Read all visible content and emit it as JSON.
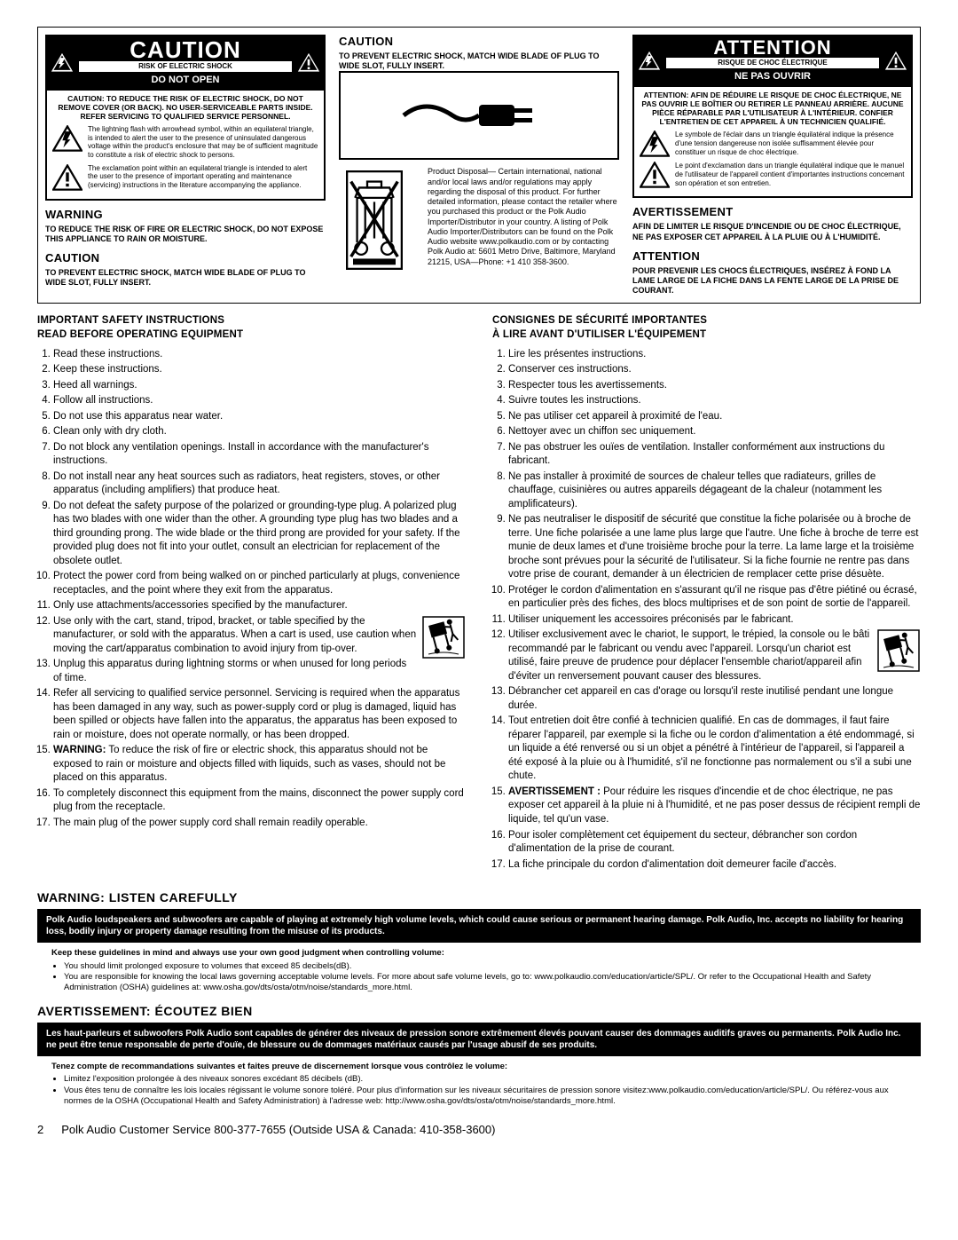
{
  "cautionBox": {
    "title": "CAUTION",
    "risk": "RISK OF ELECTRIC SHOCK",
    "doNotOpen": "DO NOT OPEN",
    "body": "CAUTION: TO REDUCE THE RISK OF ELECTRIC SHOCK, DO NOT REMOVE COVER (OR BACK). NO USER-SERVICEABLE PARTS INSIDE. REFER SERVICING TO QUALIFIED SERVICE PERSONNEL.",
    "lightning": "The lightning flash with arrowhead symbol, within an equilateral triangle, is intended to alert the user to the presence of uninsulated dangerous voltage within the product's enclosure that may be of sufficient magnitude to constitute a risk of electric shock to persons.",
    "exclaim": "The exclamation point within an equilateral triangle is intended to alert the user to the presence of important operating and maintenance (servicing) instructions in the literature accompanying the appliance."
  },
  "warningLeft": {
    "head": "WARNING",
    "text": "TO REDUCE THE RISK OF FIRE OR ELECTRIC SHOCK, DO NOT EXPOSE THIS APPLIANCE TO RAIN OR MOISTURE."
  },
  "cautionPlugL": {
    "head": "CAUTION",
    "text": "TO PREVENT ELECTRIC SHOCK, MATCH WIDE BLADE OF PLUG TO WIDE SLOT, FULLY INSERT."
  },
  "cautionPlugM": {
    "head": "CAUTION",
    "text": "TO PREVENT ELECTRIC SHOCK, MATCH WIDE BLADE OF PLUG TO WIDE SLOT, FULLY INSERT."
  },
  "disposal": "Product Disposal— Certain international, national and/or local laws and/or regulations may apply regarding the disposal of this product. For further detailed information, please contact the retailer where you purchased this product or the Polk Audio Importer/Distributor in your country. A listing of Polk Audio Importer/Distributors can be found on the Polk Audio website www.polkaudio.com or by contacting Polk Audio at: 5601 Metro Drive, Baltimore, Maryland 21215, USA—Phone: +1 410 358-3600.",
  "attentionBox": {
    "title": "ATTENTION",
    "risk": "RISQUE DE CHOC ÉLECTRIQUE",
    "neOuvrir": "NE PAS OUVRIR",
    "body": "ATTENTION: AFIN DE RÉDUIRE LE RISQUE DE CHOC ÉLECTRIQUE, NE PAS OUVRIR LE BOÎTIER OU RETIRER LE PANNEAU ARRIÈRE. AUCUNE PIÈCE RÉPARABLE PAR L'UTILISATEUR À L'INTÉRIEUR. CONFIER L'ENTRETIEN DE CET APPAREIL À UN TECHNICIEN QUALIFIÉ.",
    "lightning": "Le symbole de l'éclair dans un triangle équilatéral indique la présence d'une tension dangereuse non isolée suffisamment élevée pour constituer un risque de choc électrique.",
    "exclaim": "Le point d'exclamation dans un triangle équilatéral indique que le manuel de l'utilisateur de l'appareil contient d'importantes instructions concernant son opération et son entretien."
  },
  "avertRight": {
    "head": "AVERTISSEMENT",
    "text": "AFIN DE LIMITER LE RISQUE D'INCENDIE OU DE CHOC ÉLECTRIQUE, NE PAS EXPOSER CET APPAREIL À LA PLUIE OU À L'HUMIDITÉ."
  },
  "attnRight": {
    "head": "ATTENTION",
    "text": "POUR PREVENIR LES CHOCS ÉLECTRIQUES, INSÉREZ À FOND LA LAME LARGE DE LA FICHE DANS LA FENTE LARGE DE LA PRISE DE COURANT."
  },
  "instrEn": {
    "head1": "IMPORTANT SAFETY INSTRUCTIONS",
    "head2": "READ BEFORE OPERATING EQUIPMENT",
    "items": [
      "Read these instructions.",
      "Keep these instructions.",
      "Heed all warnings.",
      "Follow all instructions.",
      "Do not use this apparatus near water.",
      "Clean only with dry cloth.",
      "Do not block any ventilation openings. Install in accordance with the manufacturer's instructions.",
      "Do not install near any heat sources such as radiators, heat registers, stoves, or other apparatus (including amplifiers) that produce heat.",
      "Do not defeat the safety purpose of the polarized or grounding-type plug. A polarized plug has two blades with one wider than the other. A grounding type plug has two blades and a third grounding prong. The wide blade or the third prong are provided for your safety. If the provided plug does not fit into your outlet, consult an electrician for replacement of the obsolete outlet.",
      "Protect the power cord from being walked on or pinched particularly at plugs, convenience receptacles, and the point where they exit from the apparatus.",
      "Only use attachments/accessories specified by the manufacturer.",
      "Use only with the cart, stand, tripod, bracket, or table specified by the manufacturer, or sold with the apparatus. When a cart is used, use caution when moving the cart/apparatus combination to avoid injury from tip-over.",
      "Unplug this apparatus during lightning storms or when unused for long periods of time.",
      "Refer all servicing to qualified service personnel. Servicing is required when the apparatus has been damaged in any way, such as power-supply cord or plug is damaged, liquid has been spilled or objects have fallen into the apparatus, the apparatus has been exposed to rain or moisture, does not operate normally, or has been dropped.",
      "WARNING: To reduce the risk of fire or electric shock, this apparatus should not be exposed to rain or moisture and objects filled with liquids, such as vases, should not be placed on this apparatus.",
      "To completely disconnect this equipment from the mains, disconnect the power supply cord plug from the receptacle.",
      "The main plug of the power supply cord shall remain readily operable."
    ]
  },
  "instrFr": {
    "head1": "CONSIGNES DE SÉCURITÉ IMPORTANTES",
    "head2": "À LIRE AVANT D'UTILISER L'ÉQUIPEMENT",
    "items": [
      "Lire les présentes instructions.",
      "Conserver ces instructions.",
      "Respecter tous les avertissements.",
      "Suivre toutes les instructions.",
      "Ne pas utiliser cet appareil à proximité de l'eau.",
      "Nettoyer avec un chiffon sec uniquement.",
      "Ne pas obstruer les ouïes de ventilation. Installer conformément aux instructions du fabricant.",
      "Ne pas installer à proximité de sources de chaleur telles que radiateurs, grilles de chauffage, cuisinières ou autres appareils dégageant de la chaleur (notamment les amplificateurs).",
      "Ne pas neutraliser le dispositif de sécurité que constitue la fiche polarisée ou à broche de terre. Une fiche polarisée a une lame plus large que l'autre. Une fiche à broche de terre est munie de deux lames et d'une troisième broche pour la terre. La lame large et la troisième broche sont prévues pour la sécurité de l'utilisateur. Si la fiche fournie ne rentre pas dans votre prise de courant, demander à un électricien de remplacer cette prise désuète.",
      "Protéger le cordon d'alimentation en s'assurant qu'il ne risque pas d'être piétiné ou écrasé, en particulier près des fiches, des blocs multiprises et de son point de sortie de l'appareil.",
      "Utiliser uniquement les accessoires préconisés par le fabricant.",
      "Utiliser exclusivement avec le chariot, le support, le trépied, la console ou le bâti recommandé par le fabricant ou vendu avec l'appareil. Lorsqu'un chariot est utilisé, faire preuve de prudence pour déplacer l'ensemble chariot/appareil afin d'éviter un renversement pouvant causer des blessures.",
      "Débrancher cet appareil en cas d'orage ou lorsqu'il reste inutilisé pendant une longue durée.",
      "Tout entretien doit être confié à technicien qualifié. En cas de dommages, il faut faire réparer l'appareil, par exemple si la fiche ou le cordon d'alimentation a été endommagé, si un liquide a été renversé ou si un objet a pénétré à l'intérieur de l'appareil, si l'appareil a été exposé à la pluie ou à l'humidité, s'il ne fonctionne pas normalement ou s'il a subi une chute.",
      "AVERTISSEMENT : Pour réduire les risques d'incendie et de choc électrique, ne pas exposer cet appareil à la pluie ni à l'humidité, et ne pas poser dessus de récipient rempli de liquide, tel qu'un vase.",
      "Pour isoler complètement cet équipement du secteur, débrancher son cordon d'alimentation de la prise de courant.",
      "La fiche principale du cordon d'alimentation doit demeurer facile d'accès."
    ]
  },
  "listen": {
    "head": "WARNING: LISTEN CAREFULLY",
    "band": "Polk Audio loudspeakers and subwoofers are capable of playing at extremely high volume levels, which could cause serious or permanent hearing damage. Polk Audio, Inc. accepts no liability for hearing loss, bodily injury or property damage resulting from the misuse of its products.",
    "ghead": "Keep these guidelines in mind and always use your own good judgment when controlling volume:",
    "g1": "You should limit prolonged exposure to volumes that exceed 85 decibels(dB).",
    "g2": "You are responsible for knowing the local laws governing acceptable volume levels. For more about safe volume levels, go to: www.polkaudio.com/education/article/SPL/. Or refer to the Occupational Health and Safety Administration (OSHA) guidelines at: www.osha.gov/dts/osta/otm/noise/standards_more.html."
  },
  "ecoutez": {
    "head": "AVERTISSEMENT: ÉCOUTEZ BIEN",
    "band": "Les haut-parleurs et subwoofers Polk Audio sont capables de générer des niveaux de pression sonore extrêmement élevés pouvant causer des dommages auditifs graves ou permanents. Polk Audio Inc. ne peut être tenue responsable de perte d'ouïe, de blessure ou de dommages matériaux causés par l'usage abusif de ses produits.",
    "ghead": "Tenez compte de recommandations suivantes et faites preuve de discernement lorsque vous contrôlez le volume:",
    "g1": "Limitez l'exposition prolongée à des niveaux sonores excédant 85 décibels (dB).",
    "g2": "Vous êtes tenu de connaître les lois locales régissant le volume sonore toléré. Pour plus d'information sur les niveaux sécuritaires de pression sonore visitez:www.polkaudio.com/education/article/SPL/. Ou référez-vous aux normes de la OSHA (Occupational Health and Safety Administration) à l'adresse web: http://www.osha.gov/dts/osta/otm/noise/standards_more.html."
  },
  "footer": {
    "page": "2",
    "text": "Polk Audio Customer Service 800-377-7655 (Outside USA & Canada: 410-358-3600)"
  }
}
